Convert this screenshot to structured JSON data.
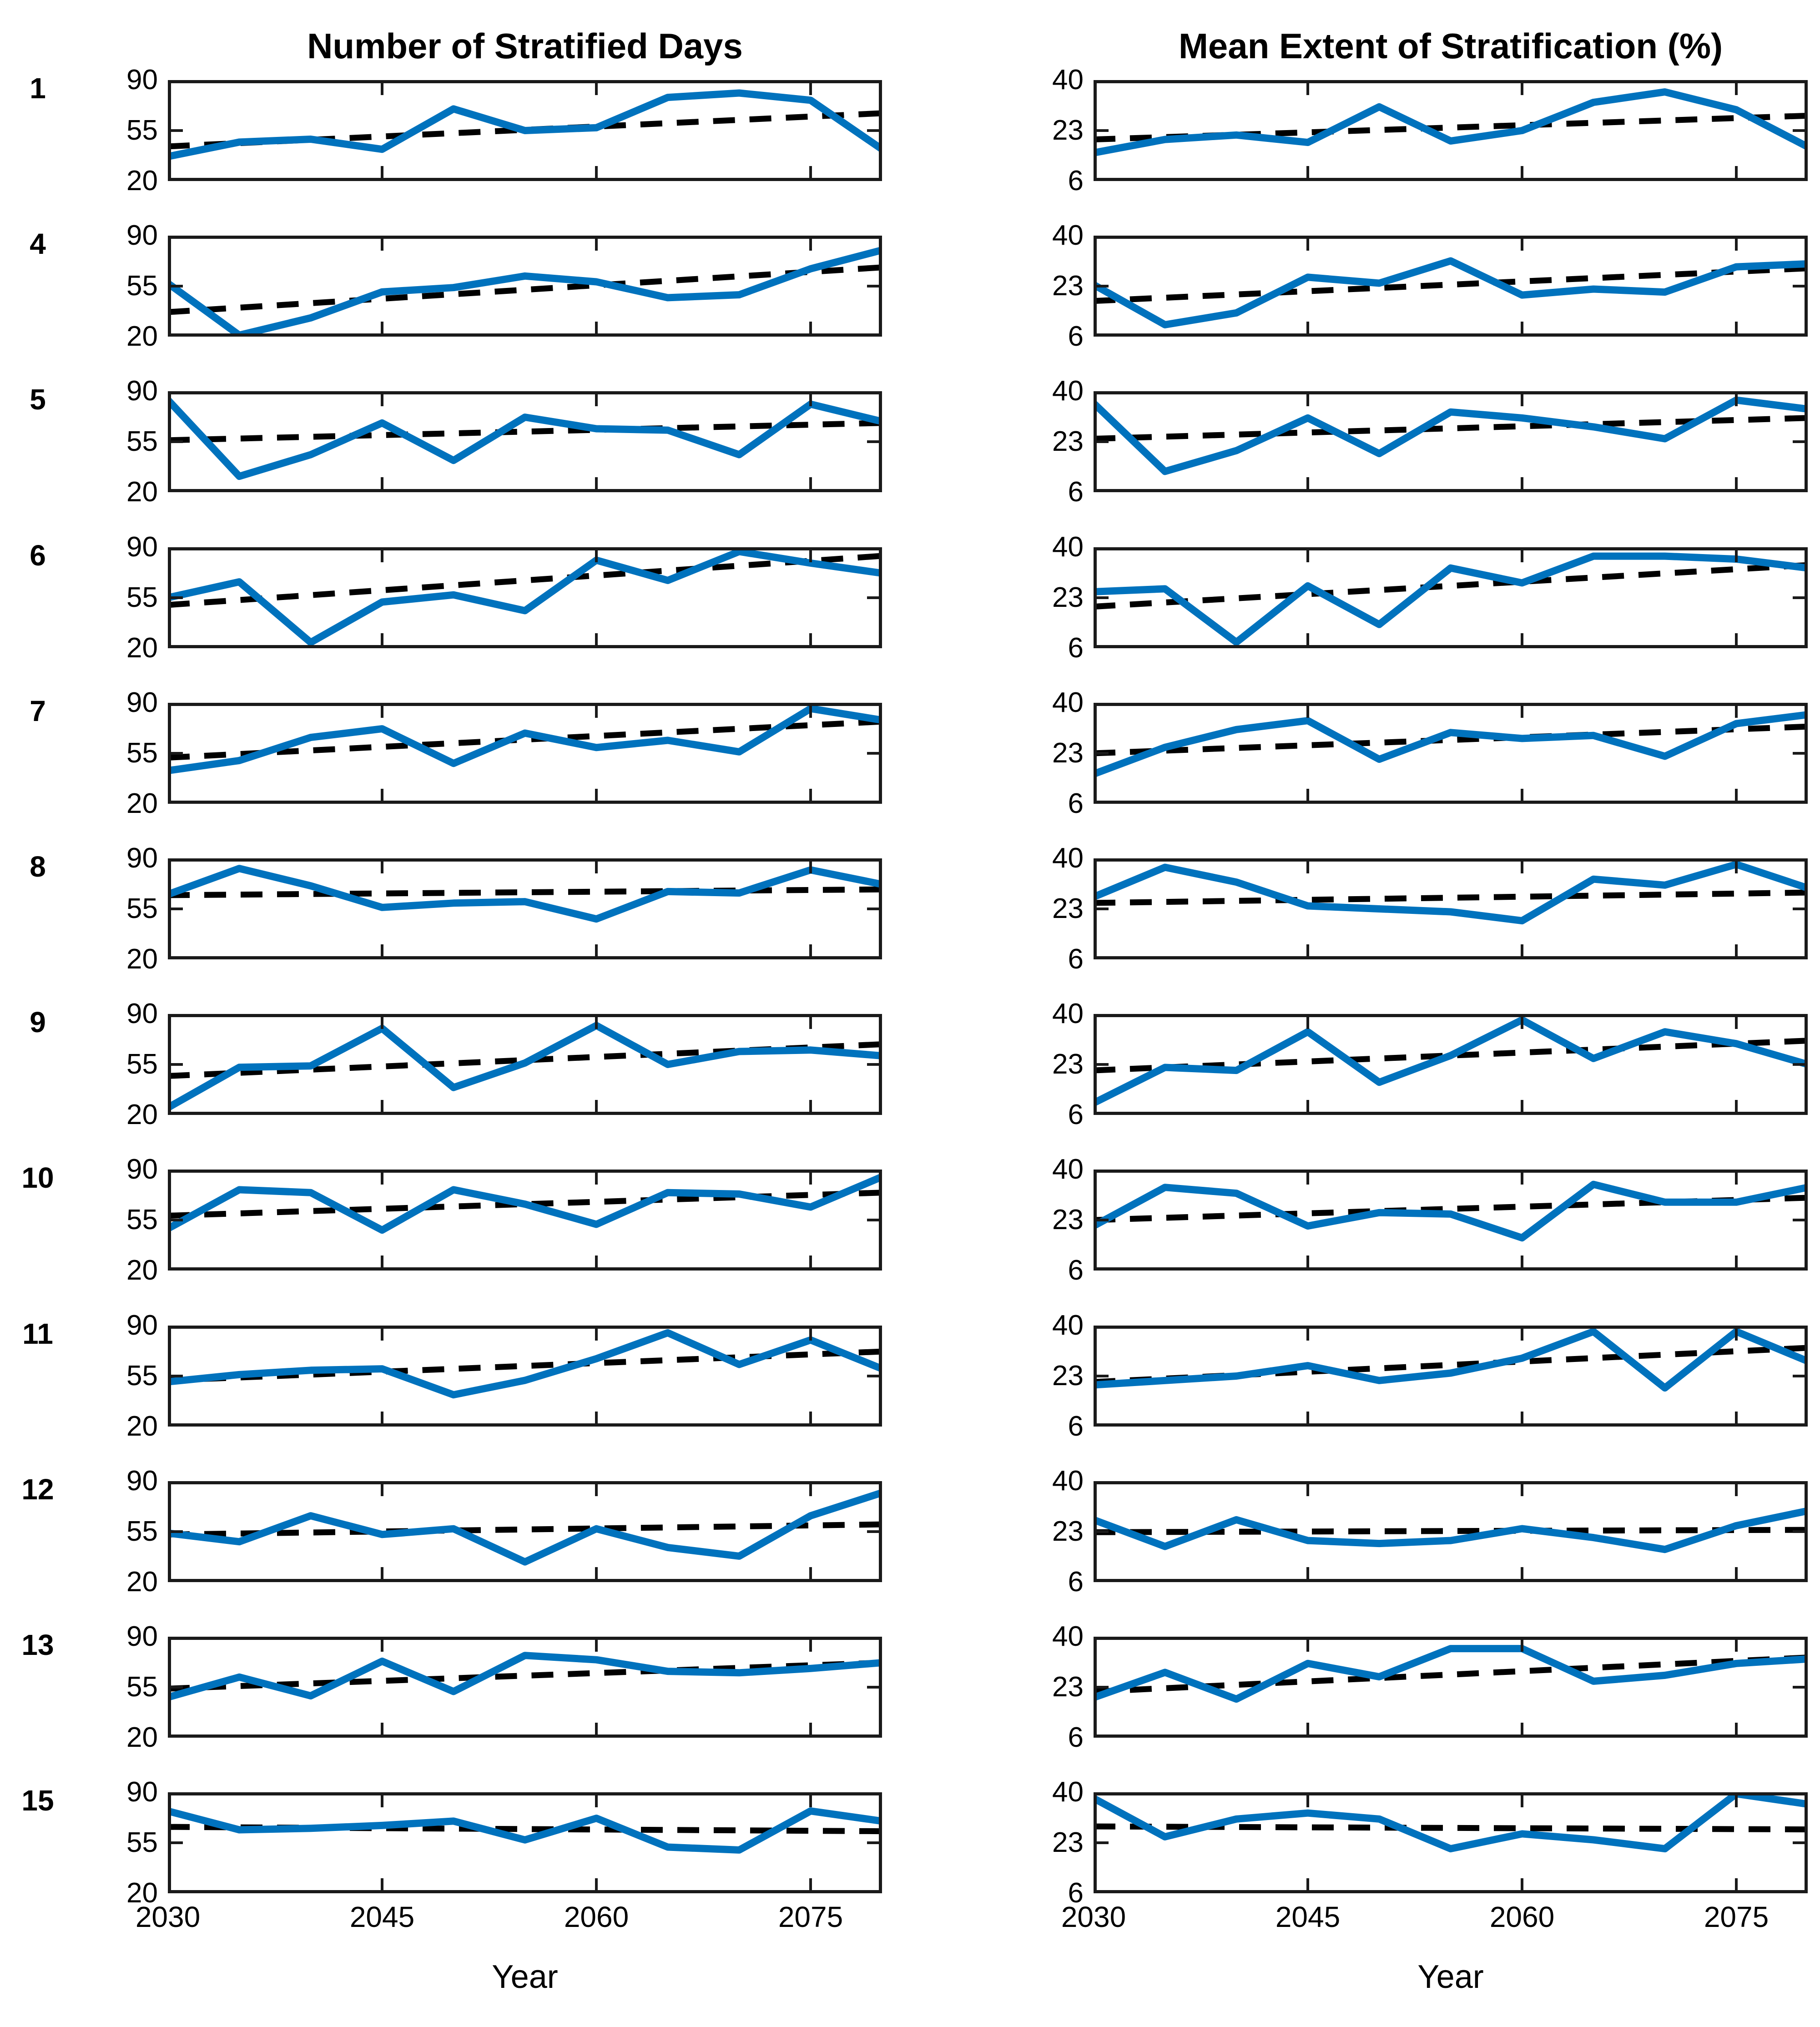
{
  "chart_data": {
    "type": "line",
    "xlabel": "Year",
    "x": [
      2030,
      2035,
      2040,
      2045,
      2050,
      2055,
      2060,
      2065,
      2070,
      2075,
      2080
    ],
    "xticks": [
      2030,
      2045,
      2060,
      2075
    ],
    "xlim": [
      2030,
      2080
    ],
    "series_color": "#0072BD",
    "trend_color": "#000000",
    "trend_style": "dashed",
    "columns": [
      {
        "title": "Number of Stratified Days",
        "ylim": [
          20,
          90
        ],
        "yticks": [
          90,
          55,
          20
        ]
      },
      {
        "title": "Mean Extent of Stratification (%)",
        "ylim": [
          6,
          40
        ],
        "yticks": [
          40,
          23,
          6
        ]
      }
    ],
    "rows": [
      {
        "label": "1",
        "left": {
          "values": [
            37,
            47,
            49,
            42,
            70,
            55,
            57,
            78,
            81,
            76,
            42
          ],
          "trend": [
            44,
            67
          ]
        },
        "right": {
          "values": [
            15.5,
            20,
            21.5,
            19,
            31,
            19.5,
            23,
            32.5,
            36,
            30,
            17.5
          ],
          "trend": [
            20,
            28
          ]
        }
      },
      {
        "label": "4",
        "left": {
          "values": [
            57,
            21,
            33,
            51,
            54,
            62,
            58,
            47,
            49,
            67,
            80
          ],
          "trend": [
            37,
            68
          ]
        },
        "right": {
          "values": [
            23.5,
            10,
            14,
            26,
            24,
            31.5,
            20,
            22,
            21,
            29.5,
            30.5
          ],
          "trend": [
            18,
            29
          ]
        }
      },
      {
        "label": "5",
        "left": {
          "values": [
            84,
            31,
            46,
            68,
            42,
            72,
            64,
            63,
            46,
            81,
            69
          ],
          "trend": [
            56,
            68
          ]
        },
        "right": {
          "values": [
            36,
            13,
            20,
            31,
            19,
            33,
            31,
            28,
            24,
            37,
            34
          ],
          "trend": [
            24,
            31
          ]
        }
      },
      {
        "label": "6",
        "left": {
          "values": [
            55,
            66,
            24,
            52,
            57,
            46,
            81,
            67,
            87,
            79,
            72
          ],
          "trend": [
            50,
            84
          ]
        },
        "right": {
          "values": [
            25,
            26,
            8,
            27,
            14,
            33,
            28,
            37,
            37,
            36,
            33
          ],
          "trend": [
            20,
            34
          ]
        }
      },
      {
        "label": "7",
        "left": {
          "values": [
            43,
            50,
            66,
            72,
            48,
            69,
            59,
            64,
            56,
            86,
            78
          ],
          "trend": [
            52,
            77
          ]
        },
        "right": {
          "values": [
            16,
            25,
            31,
            34,
            21,
            30,
            28,
            29,
            22,
            33,
            36
          ],
          "trend": [
            23,
            32
          ]
        }
      },
      {
        "label": "8",
        "left": {
          "values": [
            65,
            83,
            71,
            56,
            59,
            60,
            48,
            67,
            66,
            82,
            72
          ],
          "trend": [
            64.5,
            68.5
          ]
        },
        "right": {
          "values": [
            27,
            37,
            32,
            24,
            23,
            22,
            19,
            33,
            31,
            38,
            30
          ],
          "trend": [
            25,
            28.5
          ]
        }
      },
      {
        "label": "9",
        "left": {
          "values": [
            25,
            53,
            54,
            80,
            39,
            56,
            82,
            55,
            64,
            65,
            61
          ],
          "trend": [
            47,
            69
          ]
        },
        "right": {
          "values": [
            10,
            22,
            21,
            34,
            17,
            26,
            38,
            25,
            34,
            30,
            23
          ],
          "trend": [
            21,
            31
          ]
        }
      },
      {
        "label": "10",
        "left": {
          "values": [
            49,
            76,
            74,
            48,
            76,
            66,
            52,
            74,
            73,
            64,
            85
          ],
          "trend": [
            58,
            74
          ]
        },
        "right": {
          "values": [
            21,
            34,
            32,
            21,
            25.5,
            25,
            17,
            35,
            29,
            29,
            34
          ],
          "trend": [
            23,
            30.5
          ]
        }
      },
      {
        "label": "11",
        "left": {
          "values": [
            51,
            56,
            59,
            60,
            42,
            52,
            67,
            85,
            63,
            80,
            60
          ],
          "trend": [
            52,
            72
          ]
        },
        "right": {
          "values": [
            20,
            21.5,
            23,
            26.5,
            21.5,
            24,
            29,
            38,
            19,
            38,
            28
          ],
          "trend": [
            21,
            32.5
          ]
        }
      },
      {
        "label": "12",
        "left": {
          "values": [
            54,
            48,
            66,
            53,
            57,
            34,
            57,
            44,
            38,
            66,
            82
          ],
          "trend": [
            53,
            60
          ]
        },
        "right": {
          "values": [
            27,
            18,
            27,
            20,
            19,
            20,
            24,
            21,
            17,
            25,
            30
          ],
          "trend": [
            22.8,
            23.6
          ]
        }
      },
      {
        "label": "13",
        "left": {
          "values": [
            48,
            62,
            49,
            73,
            52,
            77,
            74,
            66,
            65,
            68,
            72
          ],
          "trend": [
            54,
            72
          ]
        },
        "right": {
          "values": [
            19.5,
            28,
            19,
            31,
            26.5,
            36,
            36,
            25,
            27,
            31,
            32.5
          ],
          "trend": [
            21.5,
            33
          ]
        }
      },
      {
        "label": "15",
        "left": {
          "values": [
            77,
            64,
            65,
            67,
            70,
            57,
            72,
            52,
            50,
            77,
            70
          ],
          "trend": [
            66,
            63
          ]
        },
        "right": {
          "values": [
            38,
            25,
            31,
            33,
            31,
            21,
            26,
            24,
            21,
            39.5,
            36
          ],
          "trend": [
            28.5,
            27.5
          ]
        }
      }
    ]
  }
}
